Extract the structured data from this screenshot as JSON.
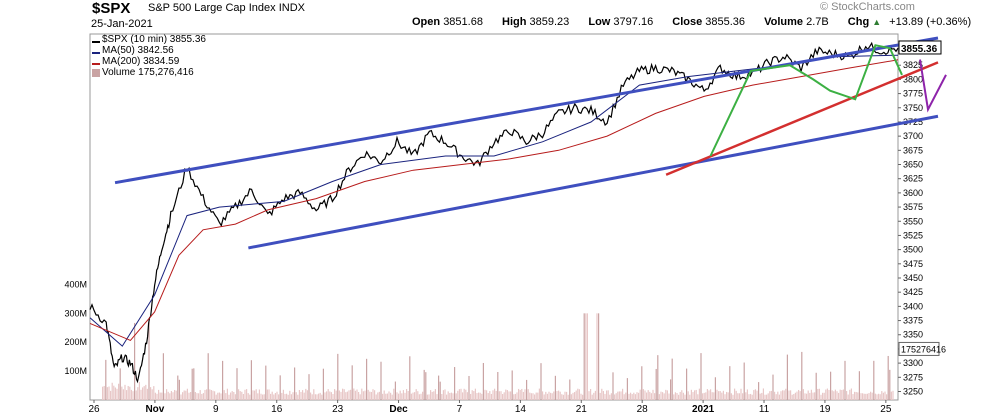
{
  "header": {
    "symbol": "$SPX",
    "name": "S&P 500 Large Cap Index",
    "exchange": "INDX",
    "date": "25-Jan-2021",
    "watermark": "© StockCharts.com",
    "open_label": "Open",
    "open": "3851.68",
    "high_label": "High",
    "high": "3859.23",
    "low_label": "Low",
    "low": "3797.16",
    "close_label": "Close",
    "close": "3855.36",
    "volume_label": "Volume",
    "volume": "2.7B",
    "chg_label": "Chg",
    "chg": "+13.89 (+0.36%)",
    "up_icon": "triangle-up-icon"
  },
  "legend": {
    "price": "$SPX (10 min) 3855.36",
    "ma50": "MA(50) 3842.56",
    "ma200": "MA(200) 3834.59",
    "volume": "Volume 175,276,416"
  },
  "colors": {
    "price": "#000000",
    "ma50": "#1a237e",
    "ma200": "#b71c1c",
    "volume_bar": "#e8c7c7",
    "volume_spike": "#c9a3a3",
    "channel": "#3f4fbf",
    "trendline": "#d32f2f",
    "zigzag": "#3cb043",
    "projection": "#8e24aa"
  },
  "chart_data": {
    "type": "line",
    "price_axis": {
      "ticks": [
        3250,
        3275,
        3300,
        3325,
        3350,
        3375,
        3400,
        3425,
        3450,
        3475,
        3500,
        3525,
        3550,
        3575,
        3600,
        3625,
        3650,
        3675,
        3700,
        3725,
        3750,
        3775,
        3800,
        3825,
        3850
      ],
      "ylim": [
        3235,
        3880
      ]
    },
    "volume_axis": {
      "ticks": [
        "100M",
        "200M",
        "300M",
        "400M"
      ],
      "tick_values": [
        100,
        200,
        300,
        400
      ],
      "ylim": [
        0,
        450
      ],
      "last_volume_label": "175276416"
    },
    "x_ticks": [
      "26",
      "Nov",
      "9",
      "16",
      "23",
      "Dec",
      "7",
      "14",
      "21",
      "28",
      "2021",
      "11",
      "19",
      "25"
    ],
    "last_price_label": "3855.36",
    "series": [
      {
        "name": "$SPX (10 min)",
        "x": [
          0,
          2,
          3,
          4,
          5,
          6,
          7,
          8,
          9,
          10,
          12,
          14,
          16,
          18,
          20,
          22,
          24,
          26,
          28,
          30,
          32,
          34,
          36,
          38,
          40,
          42,
          44,
          46,
          48,
          50,
          52,
          54,
          56,
          58,
          60,
          62,
          64,
          66,
          68,
          70,
          72,
          74,
          76,
          78,
          80,
          82,
          84,
          86,
          88,
          90,
          92,
          94,
          96,
          98,
          100
        ],
        "values": [
          3400,
          3370,
          3290,
          3310,
          3300,
          3270,
          3340,
          3440,
          3510,
          3560,
          3645,
          3590,
          3545,
          3575,
          3605,
          3560,
          3590,
          3600,
          3570,
          3590,
          3640,
          3670,
          3655,
          3690,
          3665,
          3705,
          3690,
          3665,
          3650,
          3690,
          3710,
          3690,
          3705,
          3740,
          3750,
          3745,
          3725,
          3790,
          3815,
          3820,
          3815,
          3800,
          3780,
          3820,
          3805,
          3810,
          3830,
          3840,
          3820,
          3850,
          3845,
          3840,
          3860,
          3850,
          3855
        ]
      },
      {
        "name": "MA(50)",
        "x": [
          0,
          4,
          8,
          12,
          16,
          20,
          24,
          30,
          36,
          44,
          50,
          56,
          62,
          68,
          74,
          80,
          86,
          92,
          100
        ],
        "values": [
          3380,
          3330,
          3420,
          3560,
          3575,
          3580,
          3585,
          3620,
          3650,
          3665,
          3665,
          3690,
          3725,
          3790,
          3805,
          3815,
          3825,
          3840,
          3842.56
        ]
      },
      {
        "name": "MA(200)",
        "x": [
          0,
          5,
          8,
          11,
          14,
          18,
          22,
          28,
          34,
          40,
          46,
          52,
          58,
          64,
          70,
          76,
          82,
          88,
          94,
          100
        ],
        "values": [
          3370,
          3340,
          3390,
          3490,
          3535,
          3545,
          3570,
          3590,
          3620,
          3640,
          3650,
          3660,
          3675,
          3700,
          3740,
          3770,
          3790,
          3805,
          3820,
          3834.59
        ]
      }
    ],
    "x_unit": "percent of chart width (time)"
  }
}
